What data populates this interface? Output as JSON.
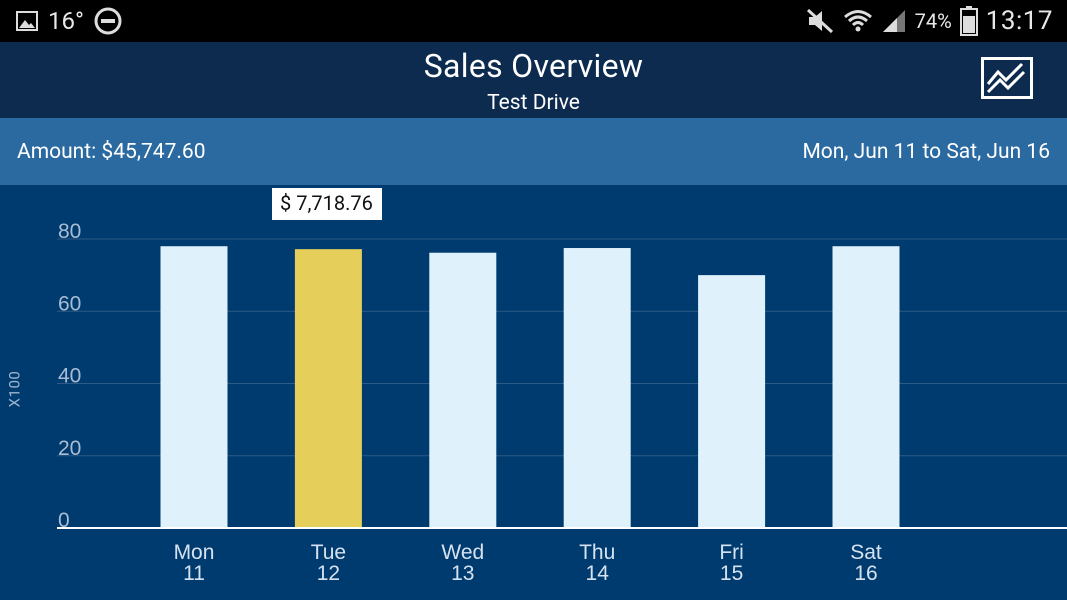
{
  "status_bar": {
    "temperature": "16°",
    "battery_percent": "74%",
    "time": "13:17"
  },
  "header": {
    "title": "Sales Overview",
    "subtitle": "Test Drive"
  },
  "info": {
    "amount": "Amount: $45,747.60",
    "date_range": "Mon, Jun 11 to Sat, Jun 16"
  },
  "tooltip": "$ 7,718.76",
  "y_unit": "X100",
  "colors": {
    "bar": "#dff2fc",
    "bar_selected": "#e5cf5a",
    "chart_bg": "#003b70",
    "grid": "#2d5a86"
  },
  "chart_data": {
    "type": "bar",
    "title": "",
    "xlabel": "",
    "ylabel": "X100",
    "ylim": [
      0,
      80
    ],
    "yticks": [
      0,
      20,
      40,
      60,
      80
    ],
    "categories": [
      {
        "day": "Mon",
        "date": "11"
      },
      {
        "day": "Tue",
        "date": "12"
      },
      {
        "day": "Wed",
        "date": "13"
      },
      {
        "day": "Thu",
        "date": "14"
      },
      {
        "day": "Fri",
        "date": "15"
      },
      {
        "day": "Sat",
        "date": "16"
      }
    ],
    "values": [
      78.0,
      77.19,
      76.2,
      77.5,
      70.0,
      78.0
    ],
    "selected_index": 1,
    "grid": true
  }
}
